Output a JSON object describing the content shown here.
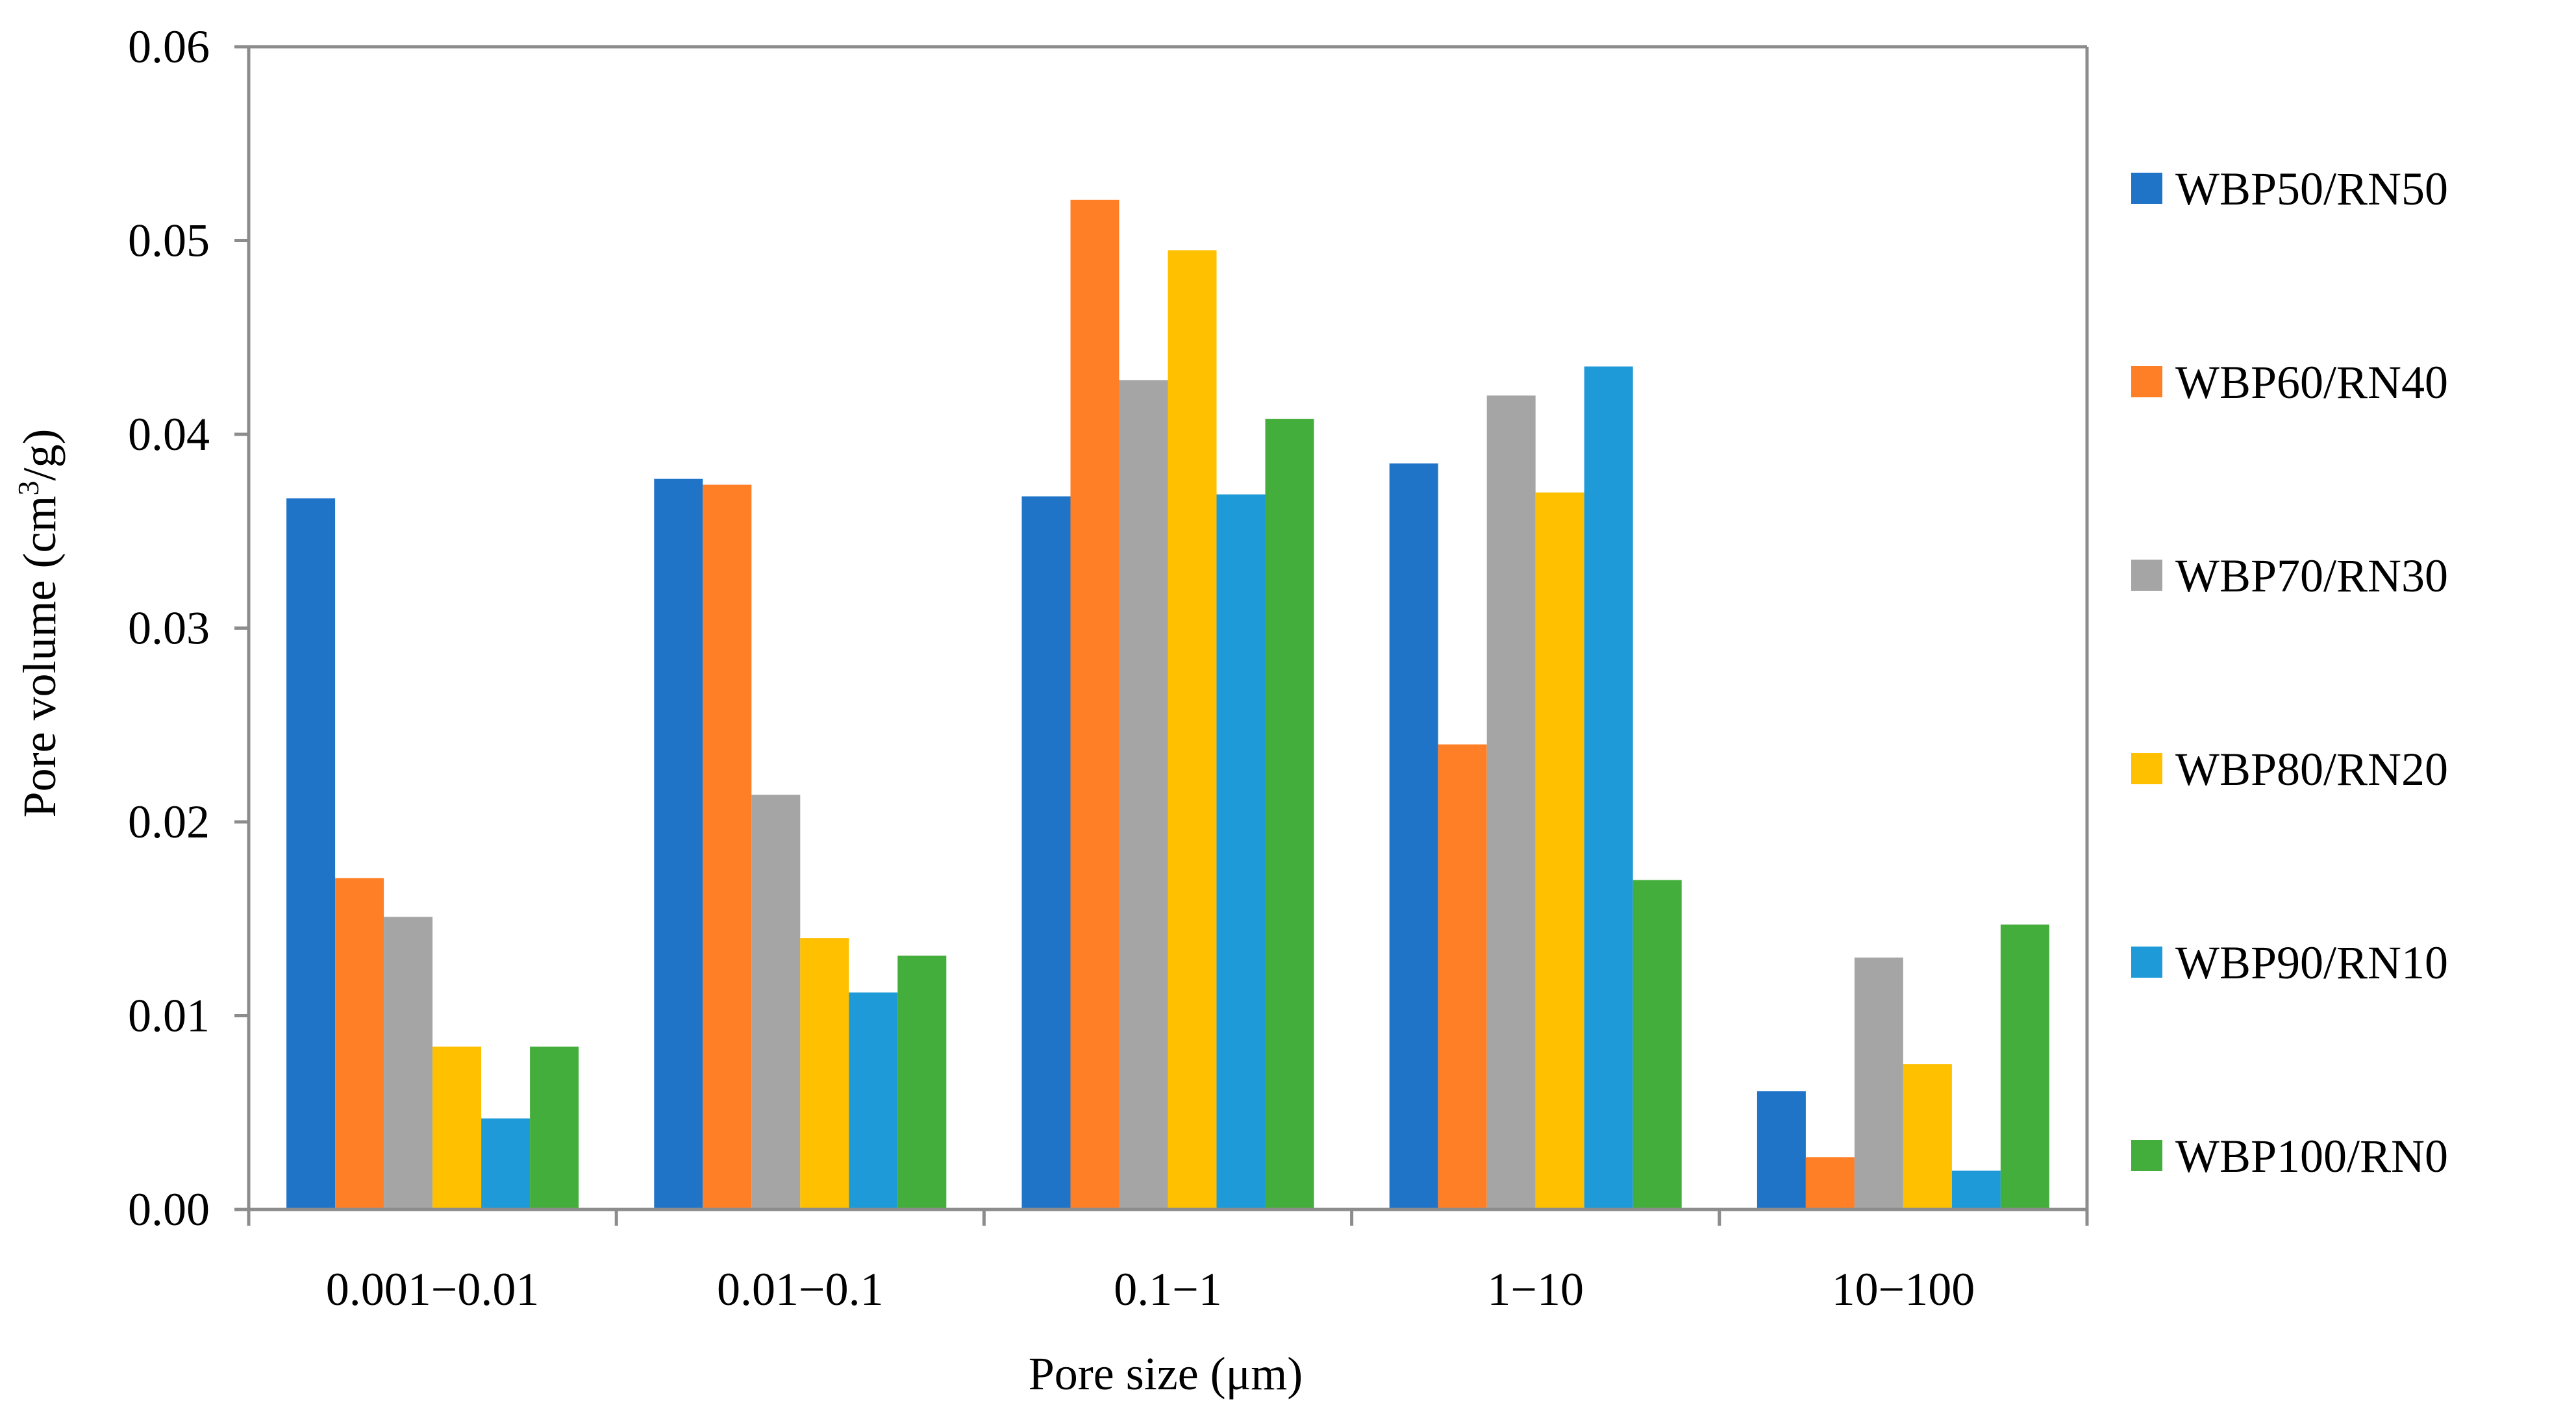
{
  "chart_data": {
    "type": "bar",
    "title": "",
    "xlabel": "Pore size (μm)",
    "ylabel_prefix": "Pore volume (cm",
    "ylabel_sup": "3",
    "ylabel_suffix": "/g)",
    "ylim": [
      0,
      0.06
    ],
    "yticks": [
      "0.00",
      "0.01",
      "0.02",
      "0.03",
      "0.04",
      "0.05",
      "0.06"
    ],
    "categories": [
      "0.001−0.01",
      "0.01−0.1",
      "0.1−1",
      "1−10",
      "10−100"
    ],
    "legend_position": "right",
    "series": [
      {
        "name": "WBP50/RN50",
        "color": "#1f74c8",
        "values": [
          0.0367,
          0.0377,
          0.0368,
          0.0385,
          0.0061
        ]
      },
      {
        "name": "WBP60/RN40",
        "color": "#ff7f27",
        "values": [
          0.0171,
          0.0374,
          0.0521,
          0.024,
          0.0027
        ]
      },
      {
        "name": "WBP70/RN30",
        "color": "#a5a5a5",
        "values": [
          0.0151,
          0.0214,
          0.0428,
          0.042,
          0.013
        ]
      },
      {
        "name": "WBP80/RN20",
        "color": "#ffc000",
        "values": [
          0.0084,
          0.014,
          0.0495,
          0.037,
          0.0075
        ]
      },
      {
        "name": "WBP90/RN10",
        "color": "#1f9ad8",
        "values": [
          0.0047,
          0.0112,
          0.0369,
          0.0435,
          0.002
        ]
      },
      {
        "name": "WBP100/RN0",
        "color": "#44ae3c",
        "values": [
          0.0084,
          0.0131,
          0.0408,
          0.017,
          0.0147
        ]
      }
    ]
  }
}
